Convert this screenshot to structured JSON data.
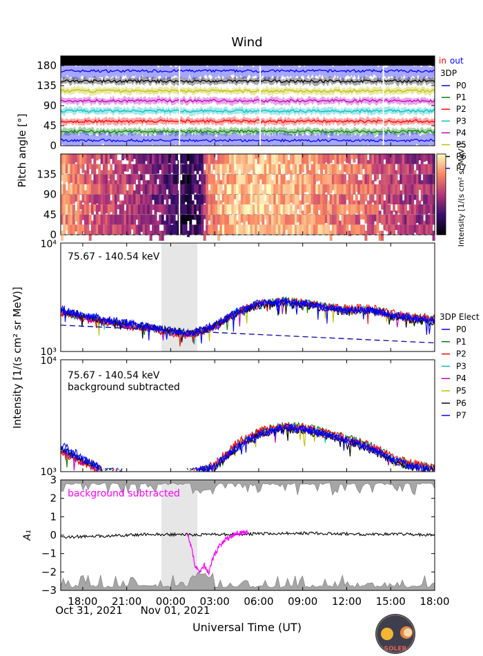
{
  "title": "Wind",
  "colors": {
    "P0": "#0000ff",
    "P1": "#008000",
    "P2": "#ff0000",
    "P3": "#00bfbf",
    "P4": "#bf00bf",
    "P5": "#bfbf00",
    "P6": "#000000",
    "P7": "#0000ff",
    "highlight": "#ff00ff"
  },
  "panel1": {
    "ylabel": "Pitch angle [°]",
    "ylim": [
      0,
      180
    ],
    "ticks": [
      "0",
      "45",
      "90",
      "135",
      "180"
    ],
    "in_label": "in",
    "out_label": "out",
    "legend_title": "3DP",
    "legend": [
      "P0",
      "P1",
      "P2",
      "P3",
      "P4",
      "P5",
      "P6",
      "P7"
    ]
  },
  "panel2": {
    "ticks": [
      "0",
      "45",
      "90",
      "135"
    ],
    "colorbar_label": "Intensity [1/(s cm² sr MeV)]"
  },
  "intensity_ylabel": "Intensity [1/(s cm² sr MeV)]",
  "panel3": {
    "label": "75.67 - 140.54 keV",
    "ylim": [
      1000,
      10000
    ],
    "ytick_top": "10⁴",
    "ytick_bottom": "10³",
    "legend_title": "3DP Elect",
    "legend": [
      "P0",
      "P1",
      "P2",
      "P3",
      "P4",
      "P5",
      "P6",
      "P7"
    ]
  },
  "panel4": {
    "label": "75.67 - 140.54 keV",
    "label2": "background subtracted",
    "ytick_top": "10⁴",
    "ytick_bottom": "10³"
  },
  "panel5": {
    "label": "background subtracted",
    "ylabel": "A₁",
    "ylim": [
      -3,
      3
    ],
    "ticks": [
      "−3",
      "−2",
      "−1",
      "0",
      "1",
      "2",
      "3"
    ]
  },
  "xaxis": {
    "ticks": [
      "18:00",
      "21:00",
      "00:00",
      "03:00",
      "06:00",
      "09:00",
      "12:00",
      "15:00",
      "18:00"
    ],
    "date1": "Oct 31, 2021",
    "date2": "Nov 01, 2021",
    "label": "Universal Time (UT)"
  },
  "logo_text": "SOLER",
  "chart_data": [
    {
      "type": "line",
      "title": "Wind",
      "ylabel": "Pitch angle [°]",
      "ylim": [
        0,
        180
      ],
      "x_range": [
        "2021-10-31 16:30",
        "2021-11-01 18:00"
      ],
      "series": [
        {
          "name": "P0",
          "value": 12
        },
        {
          "name": "P1",
          "value": 32
        },
        {
          "name": "P2",
          "value": 55
        },
        {
          "name": "P3",
          "value": 78
        },
        {
          "name": "P4",
          "value": 101
        },
        {
          "name": "P5",
          "value": 123
        },
        {
          "name": "P6",
          "value": 145
        },
        {
          "name": "P7",
          "value": 168
        }
      ]
    },
    {
      "type": "heatmap",
      "ylabel": "Pitch angle [°]",
      "ylim": [
        0,
        180
      ],
      "colorbar_label": "Intensity [1/(s cm² sr MeV)]"
    },
    {
      "type": "line",
      "label": "75.67 - 140.54 keV",
      "ylabel": "Intensity [1/(s cm² sr MeV)]",
      "yscale": "log",
      "ylim": [
        1000,
        10000
      ],
      "shaded_interval": [
        "2021-10-31 23:30",
        "2021-11-01 01:30"
      ],
      "x_hours": [
        0,
        1.5,
        3,
        4.5,
        6,
        7.5,
        9,
        10.5,
        12,
        13.5,
        15,
        16.5,
        18,
        19.5,
        21,
        22.5,
        24,
        25.5
      ],
      "series": [
        {
          "name": "P0",
          "values": [
            2400,
            2150,
            1950,
            1800,
            1700,
            1550,
            1500,
            1750,
            2350,
            2800,
            2950,
            2800,
            2600,
            2400,
            2450,
            2200,
            2050,
            1950
          ]
        },
        {
          "name": "P1",
          "values": [
            2350,
            2100,
            1900,
            1750,
            1650,
            1500,
            1450,
            1700,
            2300,
            2750,
            2950,
            2850,
            2650,
            2450,
            2500,
            2250,
            2100,
            2000
          ]
        },
        {
          "name": "P2",
          "values": [
            2300,
            2050,
            1880,
            1720,
            1620,
            1480,
            1430,
            1680,
            2300,
            2800,
            2950,
            2850,
            2650,
            2500,
            2550,
            2300,
            2150,
            2050
          ]
        },
        {
          "name": "P3",
          "values": [
            2350,
            2100,
            1920,
            1760,
            1660,
            1520,
            1460,
            1700,
            2300,
            2750,
            2900,
            2800,
            2600,
            2400,
            2450,
            2200,
            2050,
            1950
          ]
        },
        {
          "name": "P4",
          "values": [
            2300,
            2050,
            1900,
            1740,
            1640,
            1500,
            1450,
            1680,
            2250,
            2700,
            2850,
            2750,
            2550,
            2350,
            2400,
            2150,
            2000,
            1900
          ]
        },
        {
          "name": "P5",
          "values": [
            2350,
            2100,
            1920,
            1760,
            1660,
            1520,
            1460,
            1700,
            2250,
            2700,
            2850,
            2750,
            2550,
            2350,
            2400,
            2150,
            2000,
            1900
          ]
        },
        {
          "name": "P6",
          "values": [
            2400,
            2150,
            1950,
            1800,
            1700,
            1550,
            1480,
            1700,
            2250,
            2650,
            2800,
            2700,
            2500,
            2300,
            2350,
            2100,
            1950,
            1850
          ]
        },
        {
          "name": "P7",
          "values": [
            2500,
            2200,
            2000,
            1850,
            1700,
            1550,
            1480,
            1700,
            2300,
            2700,
            2850,
            2750,
            2550,
            2350,
            2400,
            2150,
            2000,
            1900
          ]
        }
      ],
      "background": {
        "x_hours": [
          0,
          25.5
        ],
        "values": [
          1750,
          1200
        ]
      }
    },
    {
      "type": "line",
      "label": "75.67 - 140.54 keV",
      "label2": "background subtracted",
      "yscale": "log",
      "ylim": [
        1000,
        10000
      ],
      "x_hours": [
        0,
        1.5,
        3,
        4.5,
        6,
        7.5,
        9,
        10.5,
        12,
        13.5,
        15,
        16.5,
        18,
        19.5,
        21,
        22.5,
        24,
        25.5
      ],
      "series": [
        {
          "name": "P0",
          "values": [
            1600,
            1300,
            1000,
            1000,
            1000,
            1000,
            1000,
            1100,
            1650,
            2150,
            2500,
            2450,
            2200,
            1900,
            1650,
            1300,
            1100,
            1050
          ]
        },
        {
          "name": "P1",
          "values": [
            1550,
            1250,
            1000,
            1000,
            1000,
            1000,
            1000,
            1100,
            1700,
            2250,
            2600,
            2550,
            2300,
            2000,
            1750,
            1350,
            1150,
            1100
          ]
        },
        {
          "name": "P2",
          "values": [
            1500,
            1200,
            1000,
            1000,
            1000,
            1000,
            1000,
            1150,
            1800,
            2300,
            2550,
            2500,
            2250,
            2000,
            1750,
            1400,
            1200,
            1100
          ]
        },
        {
          "name": "P3",
          "values": [
            1550,
            1250,
            1000,
            1000,
            1000,
            1000,
            1000,
            1100,
            1700,
            2200,
            2500,
            2450,
            2200,
            1950,
            1700,
            1350,
            1150,
            1050
          ]
        },
        {
          "name": "P4",
          "values": [
            1500,
            1200,
            1000,
            1000,
            1000,
            1000,
            1000,
            1080,
            1650,
            2150,
            2450,
            2400,
            2150,
            1900,
            1650,
            1300,
            1100,
            1050
          ]
        },
        {
          "name": "P5",
          "values": [
            1550,
            1250,
            1000,
            1000,
            1000,
            1000,
            1000,
            1080,
            1650,
            2150,
            2450,
            2400,
            2150,
            1900,
            1650,
            1300,
            1100,
            1050
          ]
        },
        {
          "name": "P6",
          "values": [
            1600,
            1300,
            1000,
            1000,
            1000,
            1000,
            1000,
            1050,
            1600,
            2100,
            2400,
            2350,
            2100,
            1850,
            1600,
            1250,
            1080,
            1030
          ]
        },
        {
          "name": "P7",
          "values": [
            1750,
            1350,
            1000,
            1000,
            1000,
            1000,
            1000,
            1100,
            1650,
            2150,
            2450,
            2400,
            2150,
            1900,
            1650,
            1300,
            1100,
            1050
          ]
        }
      ]
    },
    {
      "type": "line",
      "label": "background subtracted",
      "ylabel": "A₁",
      "ylim": [
        -3,
        3
      ],
      "series": [
        {
          "name": "A1",
          "x_hours": [
            0,
            3,
            6,
            9,
            12,
            15,
            18,
            21,
            24,
            25.5
          ],
          "values": [
            -0.1,
            -0.05,
            0.05,
            0.02,
            0.05,
            0.1,
            0.1,
            0.05,
            0.05,
            0.0
          ]
        },
        {
          "name": "A1 background subtracted",
          "x_hours": [
            8.6,
            8.8,
            9.0,
            9.2,
            9.5,
            9.8,
            10.1,
            10.4,
            10.8,
            11.2,
            11.6,
            12.0,
            12.4,
            12.8
          ],
          "values": [
            0.2,
            -0.3,
            -1.0,
            -1.8,
            -2.0,
            -1.6,
            -2.1,
            -1.2,
            -0.6,
            -0.3,
            -0.1,
            0.1,
            0.15,
            0.2
          ]
        }
      ]
    }
  ]
}
